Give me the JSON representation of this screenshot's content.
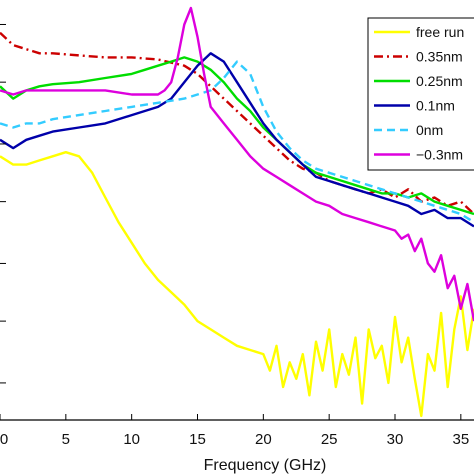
{
  "chart_data": {
    "type": "line",
    "xlabel": "Frequency (GHz)",
    "ylabel": "",
    "xlim": [
      0,
      36
    ],
    "ylim": [
      0,
      1
    ],
    "x_ticks": [
      0,
      5,
      10,
      15,
      20,
      25,
      30,
      35
    ],
    "x_tick_labels": [
      "0",
      "5",
      "10",
      "15",
      "20",
      "25",
      "30",
      "35"
    ],
    "grid": false,
    "legend_position": "top-right",
    "series": [
      {
        "name": "free run",
        "color": "#ffff00",
        "dash": "solid",
        "x": [
          0,
          1,
          2,
          3,
          4,
          5,
          6,
          7,
          8,
          9,
          10,
          11,
          12,
          13,
          14,
          15,
          16,
          17,
          18,
          19,
          20,
          20.5,
          21,
          21.5,
          22,
          22.5,
          23,
          23.5,
          24,
          24.5,
          25,
          25.5,
          26,
          26.5,
          27,
          27.5,
          28,
          28.5,
          29,
          29.5,
          30,
          30.5,
          31,
          31.5,
          32,
          32.5,
          33,
          33.5,
          34,
          34.5,
          35,
          35.5,
          36
        ],
        "y": [
          0.64,
          0.62,
          0.62,
          0.63,
          0.64,
          0.65,
          0.64,
          0.6,
          0.54,
          0.48,
          0.43,
          0.38,
          0.34,
          0.31,
          0.28,
          0.24,
          0.22,
          0.2,
          0.18,
          0.17,
          0.16,
          0.12,
          0.18,
          0.08,
          0.14,
          0.1,
          0.16,
          0.06,
          0.19,
          0.12,
          0.22,
          0.08,
          0.16,
          0.11,
          0.2,
          0.04,
          0.22,
          0.15,
          0.18,
          0.09,
          0.25,
          0.14,
          0.2,
          0.1,
          0.01,
          0.16,
          0.12,
          0.26,
          0.08,
          0.22,
          0.3,
          0.17,
          0.27
        ]
      },
      {
        "name": "0.35nm",
        "color": "#cc0000",
        "dash": "dashdot",
        "x": [
          0,
          1,
          2,
          3,
          4,
          6,
          8,
          10,
          12,
          14,
          15,
          16,
          17,
          18,
          19,
          20,
          21,
          22,
          23,
          24,
          25,
          26,
          27,
          28,
          29,
          30,
          31,
          32,
          33,
          34,
          35,
          36
        ],
        "y": [
          0.94,
          0.91,
          0.9,
          0.89,
          0.89,
          0.885,
          0.88,
          0.88,
          0.875,
          0.86,
          0.84,
          0.81,
          0.78,
          0.75,
          0.72,
          0.69,
          0.66,
          0.63,
          0.61,
          0.6,
          0.58,
          0.57,
          0.56,
          0.55,
          0.56,
          0.54,
          0.56,
          0.53,
          0.54,
          0.52,
          0.53,
          0.5
        ]
      },
      {
        "name": "0.25nm",
        "color": "#00dd00",
        "dash": "solid",
        "x": [
          0,
          1,
          2,
          3,
          4,
          6,
          8,
          10,
          11,
          12,
          13,
          14,
          15,
          16,
          17,
          18,
          19,
          20,
          21,
          22,
          23,
          24,
          25,
          26,
          27,
          28,
          29,
          30,
          31,
          32,
          33,
          34,
          35,
          36
        ],
        "y": [
          0.81,
          0.78,
          0.8,
          0.81,
          0.815,
          0.82,
          0.83,
          0.84,
          0.85,
          0.86,
          0.87,
          0.88,
          0.87,
          0.85,
          0.82,
          0.78,
          0.75,
          0.71,
          0.68,
          0.65,
          0.62,
          0.6,
          0.59,
          0.58,
          0.57,
          0.56,
          0.55,
          0.55,
          0.54,
          0.55,
          0.53,
          0.52,
          0.51,
          0.5
        ]
      },
      {
        "name": "0.1nm",
        "color": "#0000aa",
        "dash": "solid",
        "x": [
          0,
          1,
          2,
          3,
          4,
          6,
          8,
          10,
          11,
          12,
          13,
          14,
          15,
          16,
          17,
          18,
          19,
          20,
          21,
          22,
          23,
          24,
          25,
          26,
          27,
          28,
          29,
          30,
          31,
          32,
          33,
          34,
          35,
          36
        ],
        "y": [
          0.68,
          0.66,
          0.68,
          0.69,
          0.7,
          0.71,
          0.72,
          0.74,
          0.75,
          0.76,
          0.78,
          0.82,
          0.86,
          0.89,
          0.87,
          0.82,
          0.77,
          0.72,
          0.68,
          0.65,
          0.62,
          0.59,
          0.58,
          0.57,
          0.56,
          0.55,
          0.54,
          0.53,
          0.52,
          0.5,
          0.51,
          0.49,
          0.49,
          0.47
        ]
      },
      {
        "name": "0nm",
        "color": "#33ccff",
        "dash": "dashed",
        "x": [
          0,
          1,
          2,
          3,
          4,
          6,
          8,
          10,
          12,
          14,
          15,
          16,
          17,
          18,
          19,
          20,
          21,
          22,
          23,
          24,
          25,
          26,
          27,
          28,
          29,
          30,
          31,
          32,
          33,
          34,
          35,
          36
        ],
        "y": [
          0.72,
          0.71,
          0.72,
          0.72,
          0.73,
          0.74,
          0.75,
          0.76,
          0.77,
          0.78,
          0.79,
          0.8,
          0.83,
          0.87,
          0.84,
          0.76,
          0.7,
          0.66,
          0.63,
          0.61,
          0.6,
          0.59,
          0.58,
          0.57,
          0.56,
          0.55,
          0.54,
          0.53,
          0.52,
          0.51,
          0.5,
          0.48
        ]
      },
      {
        "name": "−0.3nm",
        "color": "#dd00dd",
        "dash": "solid",
        "x": [
          0,
          1,
          2,
          3,
          4,
          6,
          8,
          10,
          11,
          12,
          12.5,
          13,
          13.5,
          14,
          14.5,
          15,
          15.5,
          16,
          17,
          18,
          19,
          20,
          21,
          22,
          23,
          24,
          25,
          26,
          27,
          28,
          29,
          30,
          30.5,
          31,
          31.5,
          32,
          32.5,
          33,
          33.5,
          34,
          34.5,
          35,
          35.5,
          36
        ],
        "y": [
          0.8,
          0.79,
          0.8,
          0.8,
          0.8,
          0.8,
          0.8,
          0.79,
          0.79,
          0.79,
          0.8,
          0.82,
          0.88,
          0.96,
          1.0,
          0.93,
          0.84,
          0.76,
          0.72,
          0.68,
          0.64,
          0.61,
          0.59,
          0.57,
          0.55,
          0.53,
          0.52,
          0.5,
          0.49,
          0.48,
          0.47,
          0.46,
          0.44,
          0.45,
          0.41,
          0.44,
          0.38,
          0.36,
          0.4,
          0.32,
          0.35,
          0.27,
          0.33,
          0.24
        ]
      }
    ]
  }
}
